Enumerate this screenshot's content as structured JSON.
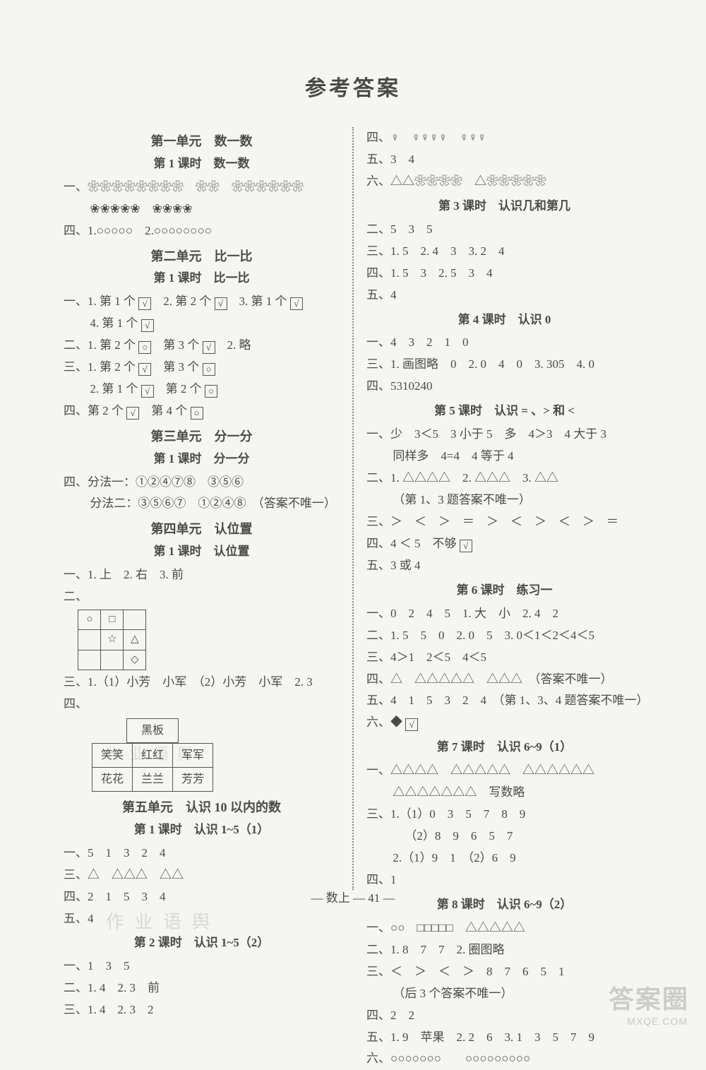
{
  "title": "参考答案",
  "footer": "— 数上 — 41 —",
  "watermarks": {
    "wm1": "作 业 语 舆",
    "wm2": "作 业 语 舆",
    "logo": "答案圈",
    "url": "MXQE.COM"
  },
  "glyphs": {
    "dark_circle": "❀",
    "white_circle": "○",
    "square": "□",
    "triangle": "△",
    "star": "☆",
    "diamond": "◇",
    "check": "√",
    "balloon": "♀",
    "fill_tri": "◆"
  },
  "left": {
    "u1": {
      "unit": "第一单元　数一数",
      "lesson": "第 1 课时　数一数",
      "l1_label": "一、",
      "l1_rowA_n1": 8,
      "l1_rowA_n2": 2,
      "l1_rowA_n3": 6,
      "l1_rowB_n1": 5,
      "l1_rowB_n2": 4,
      "l4_label": "四、",
      "l4p1_label": "1.",
      "l4p1_n": 5,
      "l4p2_label": "2.",
      "l4p2_n": 8
    },
    "u2": {
      "unit": "第二单元　比一比",
      "lesson": "第 1 课时　比一比",
      "q1_label": "一、",
      "q1_1": "1. 第 1 个",
      "q1_2": "2. 第 2 个",
      "q1_3": "3. 第 1 个",
      "q1_4": "4. 第 1 个",
      "q2_label": "二、",
      "q2_1": "1. 第 2 个",
      "q2_1b": "第 3 个",
      "q2_2": "2. 略",
      "q3_label": "三、",
      "q3_1": "1. 第 2 个",
      "q3_1b": "第 3 个",
      "q3_2": "2. 第 1 个",
      "q3_2b": "第 2 个",
      "q4_label": "四、",
      "q4_a": "第 2 个",
      "q4_b": "第 4 个"
    },
    "u3": {
      "unit": "第三单元　分一分",
      "lesson": "第 1 课时　分一分",
      "l4_label": "四、",
      "m1_label": "分法一：",
      "m1_a": "①②④⑦⑧",
      "m1_b": "③⑤⑥",
      "m2_label": "分法二：",
      "m2_a": "③⑤⑥⑦",
      "m2_b": "①②④⑧",
      "note": "（答案不唯一）"
    },
    "u4": {
      "unit": "第四单元　认位置",
      "lesson": "第 1 课时　认位置",
      "l1": "一、1. 上　2. 右　3. 前",
      "l2_label": "二、",
      "grid": [
        [
          "○",
          "□",
          ""
        ],
        [
          "",
          "☆",
          "△"
        ],
        [
          "",
          "",
          "◇"
        ]
      ],
      "l3": "三、1.（1）小芳　小军　（2）小芳　小军　2. 3",
      "l4_label": "四、",
      "seat_header": "黑板",
      "seat_rows": [
        [
          "笑笑",
          "红红",
          "军军"
        ],
        [
          "花花",
          "兰兰",
          "芳芳"
        ]
      ]
    },
    "u5": {
      "unit": "第五单元　认识 10 以内的数",
      "les1": "第 1 课时　认识 1~5（1）",
      "l1": "一、5　1　3　2　4",
      "l3_label": "三、",
      "l3_g1": 1,
      "l3_g2": 3,
      "l3_g3": 2,
      "l4": "四、2　1　5　3　4",
      "l5": "五、4",
      "les2": "第 2 课时　认识 1~5（2）",
      "b1": "一、1　3　5",
      "b2": "二、1. 4　2. 3　前",
      "b3": "三、1. 4　2. 3　2"
    }
  },
  "right": {
    "pre": {
      "l4_label": "四、",
      "balloons_a": 1,
      "balloons_b": 4,
      "balloons_c": 3,
      "l5": "五、3　4",
      "l6_label": "六、",
      "l6_g1_t": 2,
      "l6_g1_c": 4,
      "l6_g2_t": 1,
      "l6_g2_c": 5
    },
    "les3": {
      "title": "第 3 课时　认识几和第几",
      "l2": "二、5　3　5",
      "l3": "三、1. 5　2. 4　3　3. 2　4",
      "l4": "四、1. 5　3　2. 5　3　4",
      "l5": "五、4"
    },
    "les4": {
      "title": "第 4 课时　认识 0",
      "l1": "一、4　3　2　1　0",
      "l3": "三、1. 画图略　0　2. 0　4　0　3. 305　4. 0",
      "l4": "四、5310240"
    },
    "les5": {
      "title": "第 5 课时　认识 = 、> 和 <",
      "l1a": "一、少　3＜5　3 小于 5　多　4＞3　4 大于 3",
      "l1b": "同样多　4=4　4 等于 4",
      "l2_label": "二、",
      "l2p1": "1.",
      "l2n1": 4,
      "l2p2": "2.",
      "l2n2": 3,
      "l2p3": "3.",
      "l2n3": 2,
      "l2_note": "（第 1、3 题答案不唯一）",
      "l3": "三、＞　＜　＞　＝　＞　＜　＞　＜　＞　＝",
      "l4_label": "四、",
      "l4_a": "4 ＜ 5　不够",
      "l5": "五、3 或 4"
    },
    "les6": {
      "title": "第 6 课时　练习一",
      "l1": "一、0　2　4　5　1. 大　小　2. 4　2",
      "l2": "二、1. 5　5　0　2. 0　5　3. 0＜1＜2＜4＜5",
      "l3": "三、4＞1　2＜5　4＜5",
      "l4_label": "四、",
      "l4_t1": 1,
      "l4_t2": 5,
      "l4_t3": 3,
      "l4_note": "（答案不唯一）",
      "l5": "五、4　1　5　3　2　4　（第 1、3、4 题答案不唯一）",
      "l6_label": "六、"
    },
    "les7": {
      "title": "第 7 课时　认识 6~9（1）",
      "l1_label": "一、",
      "l1_n1": 4,
      "l1_n2": 5,
      "l1_n3": 6,
      "l1_n4": 7,
      "l1_tail": "写数略",
      "l3a": "三、1.（1）0　3　5　7　8　9",
      "l3b": "（2）8　9　6　5　7",
      "l3c": "2.（1）9　1　（2）6　9",
      "l4": "四、1"
    },
    "les8": {
      "title": "第 8 课时　认识 6~9（2）",
      "l1_label": "一、",
      "l1_c": 2,
      "l1_sq": 5,
      "l1_t": 5,
      "l2": "二、1. 8　7　7　2. 圈图略",
      "l3a": "三、＜　＞　＜　＞　8　7　6　5　1",
      "l3b": "（后 3 个答案不唯一）",
      "l4": "四、2　2",
      "l5": "五、1. 9　苹果　2. 2　6　3. 1　3　5　7　9",
      "l6_label": "六、",
      "l6_n1": 7,
      "l6_n2": 9
    }
  }
}
